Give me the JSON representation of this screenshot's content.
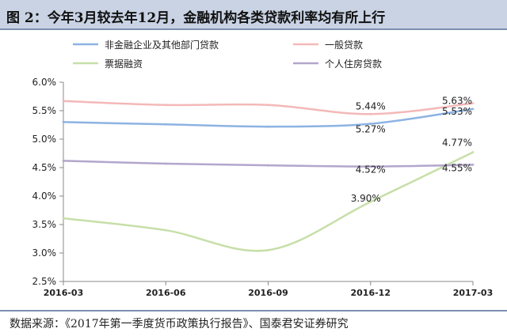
{
  "title": "图 2：今年3月较去年12月，金融机构各类贷款利率均有所上行",
  "source": "数据来源：《2017年第一季度货币政策执行报告》、国泰君安证券研究",
  "chart_data": {
    "type": "line",
    "x": [
      "2016-03",
      "2016-06",
      "2016-09",
      "2016-12",
      "2017-03"
    ],
    "ylim": [
      2.5,
      6.0
    ],
    "yticks": [
      2.5,
      3.0,
      3.5,
      4.0,
      4.5,
      5.0,
      5.5,
      6.0
    ],
    "ytick_labels": [
      "2.5%",
      "3.0%",
      "3.5%",
      "4.0%",
      "4.5%",
      "5.0%",
      "5.5%",
      "6.0%"
    ],
    "legend_position": "top",
    "grid": false,
    "series": [
      {
        "name": "非金融企业及其他部门贷款",
        "color": "#8db3e2",
        "values": [
          5.3,
          5.26,
          5.22,
          5.27,
          5.53
        ]
      },
      {
        "name": "一般贷款",
        "color": "#f4b8b8",
        "values": [
          5.67,
          5.6,
          5.6,
          5.44,
          5.63
        ]
      },
      {
        "name": "票据融资",
        "color": "#c6dfa8",
        "values": [
          3.61,
          3.4,
          3.05,
          3.9,
          4.77
        ]
      },
      {
        "name": "个人住房贷款",
        "color": "#b3a6cc",
        "values": [
          4.62,
          4.57,
          4.54,
          4.52,
          4.55
        ]
      }
    ],
    "annotations": [
      {
        "text": "5.44%",
        "x": "2016-12",
        "y": 5.44
      },
      {
        "text": "5.27%",
        "x": "2016-12",
        "y": 5.27
      },
      {
        "text": "4.52%",
        "x": "2016-12",
        "y": 4.52
      },
      {
        "text": "3.90%",
        "x": "2016-12",
        "y": 3.9
      },
      {
        "text": "5.63%",
        "x": "2017-03",
        "y": 5.63
      },
      {
        "text": "5.53%",
        "x": "2017-03",
        "y": 5.53
      },
      {
        "text": "4.77%",
        "x": "2017-03",
        "y": 4.77
      },
      {
        "text": "4.55%",
        "x": "2017-03",
        "y": 4.55
      }
    ]
  }
}
